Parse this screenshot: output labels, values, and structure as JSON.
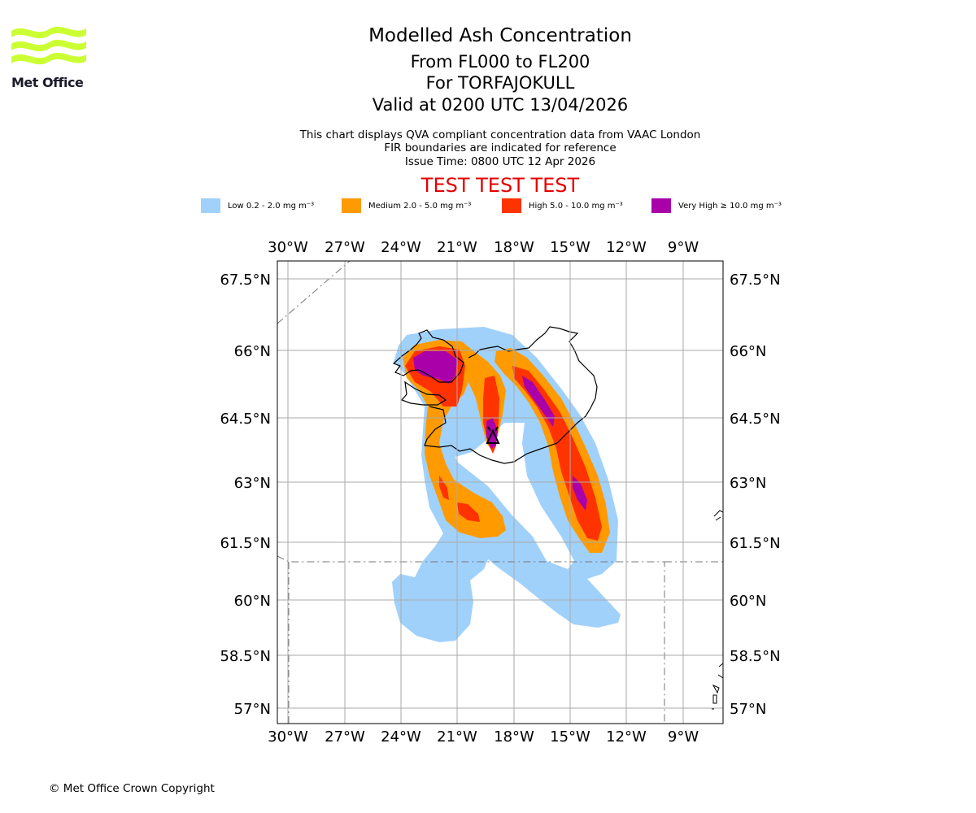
{
  "header": {
    "title": "Modelled Ash Concentration",
    "levels": "From FL000 to FL200",
    "volcano": "For TORFAJOKULL",
    "valid": "Valid at 0200 UTC 13/04/2026",
    "note1": "This chart displays QVA compliant concentration data from VAAC London",
    "note2": "FIR boundaries are indicated for reference",
    "issue": "Issue Time: 0800 UTC 12 Apr 2026",
    "test_banner": "TEST TEST TEST"
  },
  "logo": {
    "text": "Met Office",
    "color": "#ccff33"
  },
  "legend": [
    {
      "label": "Low 0.2 - 2.0 mg m⁻³",
      "color": "#a0d1fb"
    },
    {
      "label": "Medium 2.0 - 5.0 mg m⁻³",
      "color": "#ff9a00"
    },
    {
      "label": "High 5.0 - 10.0 mg m⁻³",
      "color": "#ff3300"
    },
    {
      "label": "Very High  ≥  10.0 mg m⁻³",
      "color": "#aa00aa"
    }
  ],
  "map": {
    "lon_ticks": [
      "30°W",
      "27°W",
      "24°W",
      "21°W",
      "18°W",
      "15°W",
      "12°W",
      "9°W"
    ],
    "lat_ticks": [
      "67.5°N",
      "66°N",
      "64.5°N",
      "63°N",
      "61.5°N",
      "60°N",
      "58.5°N",
      "57°N"
    ]
  },
  "footer": {
    "copyright": "© Met Office Crown Copyright"
  }
}
